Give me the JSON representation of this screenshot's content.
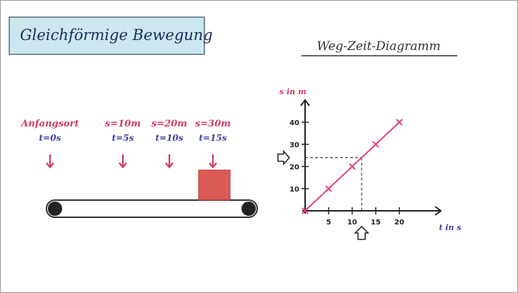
{
  "title": "Gleichförmige Bewegung",
  "positions": [
    {
      "place": "Anfangsort",
      "time": "t=0s"
    },
    {
      "place": "s=10m",
      "time": "t=5s"
    },
    {
      "place": "s=20m",
      "time": "t=10s"
    },
    {
      "place": "s=30m",
      "time": "t=15s"
    }
  ],
  "chart_data": {
    "type": "line",
    "title": "Weg-Zeit-Diagramm",
    "y_label": "s in m",
    "x_label": "t in s",
    "x": [
      0,
      5,
      10,
      15,
      20
    ],
    "values": [
      0,
      10,
      20,
      30,
      40
    ],
    "color": "#e0467a",
    "xlim": [
      0,
      27
    ],
    "ylim": [
      0,
      50
    ],
    "xticks": [
      5,
      10,
      15,
      20
    ],
    "yticks": [
      10,
      20,
      30,
      40
    ],
    "reading": {
      "x": 12,
      "y": 24
    }
  }
}
